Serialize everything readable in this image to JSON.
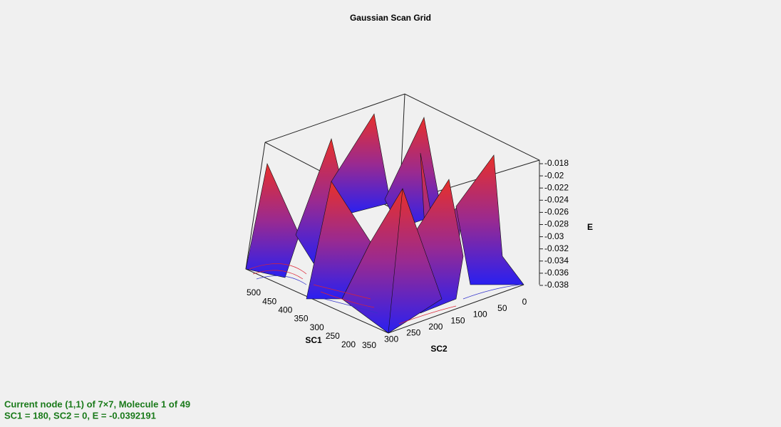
{
  "title": "Gaussian Scan Grid",
  "axes": {
    "e": {
      "label": "E",
      "ticks": [
        "-0.018",
        "-0.02",
        "-0.022",
        "-0.024",
        "-0.026",
        "-0.028",
        "-0.03",
        "-0.032",
        "-0.034",
        "-0.036",
        "-0.038"
      ]
    },
    "sc1": {
      "label": "SC1",
      "ticks": [
        "500",
        "450",
        "400",
        "350",
        "300",
        "250",
        "200"
      ]
    },
    "sc2": {
      "label": "SC2",
      "ticks": [
        "350",
        "300",
        "250",
        "200",
        "150",
        "100",
        "50",
        "0"
      ]
    }
  },
  "status": [
    "Current node (1,1) of 7×7, Molecule 1 of 49",
    "SC1 = 180, SC2 = 0, E = -0.0392191"
  ]
}
